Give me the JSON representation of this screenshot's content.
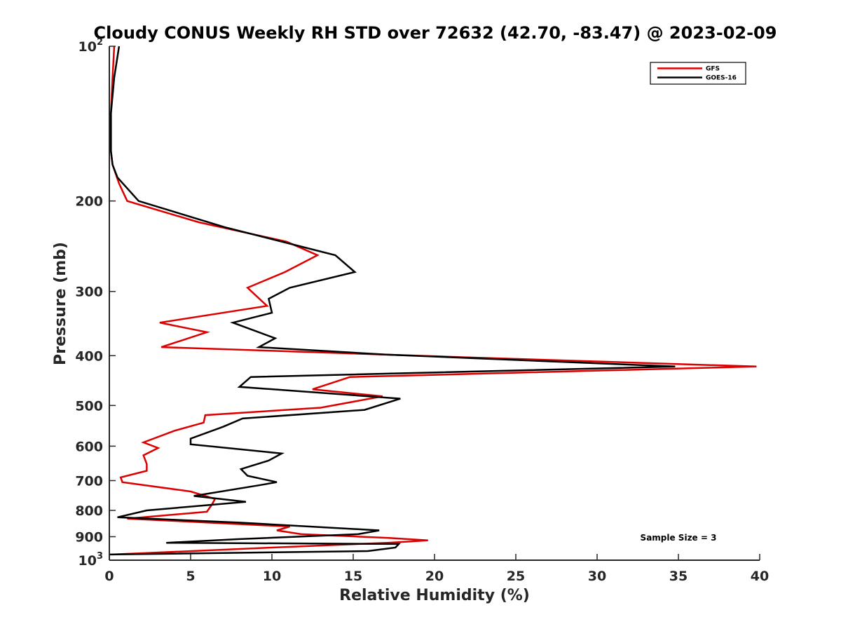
{
  "chart_data": {
    "type": "line",
    "title": "Cloudy CONUS Weekly RH STD over 72632 (42.70, -83.47) @ 2023-02-09",
    "xlabel": "Relative Humidity (%)",
    "ylabel": "Pressure (mb)",
    "xlim": [
      0,
      40
    ],
    "ylim": [
      100,
      1000
    ],
    "y_scale": "log",
    "y_reversed": true,
    "grid": false,
    "legend_position": "top-right",
    "x_ticks": [
      0,
      5,
      10,
      15,
      20,
      25,
      30,
      35,
      40
    ],
    "x_tick_labels": [
      "0",
      "5",
      "10",
      "15",
      "20",
      "25",
      "30",
      "35",
      "40"
    ],
    "y_ticks": [
      100,
      200,
      300,
      400,
      500,
      600,
      700,
      800,
      900,
      1000
    ],
    "y_tick_labels": [
      {
        "base": "10",
        "exp": "2"
      },
      {
        "base": "200",
        "exp": ""
      },
      {
        "base": "300",
        "exp": ""
      },
      {
        "base": "400",
        "exp": ""
      },
      {
        "base": "500",
        "exp": ""
      },
      {
        "base": "600",
        "exp": ""
      },
      {
        "base": "700",
        "exp": ""
      },
      {
        "base": "800",
        "exp": ""
      },
      {
        "base": "900",
        "exp": ""
      },
      {
        "base": "10",
        "exp": "3"
      }
    ],
    "annotation": "Sample Size = 3",
    "series": [
      {
        "name": "GFS",
        "color": "#dd0000",
        "points": [
          [
            0.3,
            100
          ],
          [
            0.2,
            115
          ],
          [
            0.1,
            135
          ],
          [
            0.1,
            160
          ],
          [
            0.2,
            170
          ],
          [
            0.6,
            185
          ],
          [
            1.1,
            200
          ],
          [
            5.5,
            220
          ],
          [
            10.9,
            240
          ],
          [
            12.8,
            255
          ],
          [
            10.8,
            275
          ],
          [
            8.5,
            295
          ],
          [
            9.7,
            320
          ],
          [
            3.1,
            345
          ],
          [
            6.0,
            360
          ],
          [
            3.2,
            385
          ],
          [
            22.0,
            403
          ],
          [
            39.8,
            420
          ],
          [
            14.8,
            440
          ],
          [
            12.5,
            465
          ],
          [
            16.8,
            480
          ],
          [
            13.0,
            505
          ],
          [
            5.9,
            522
          ],
          [
            5.8,
            540
          ],
          [
            4.0,
            560
          ],
          [
            2.1,
            590
          ],
          [
            3.0,
            605
          ],
          [
            2.1,
            625
          ],
          [
            2.3,
            650
          ],
          [
            2.3,
            670
          ],
          [
            0.7,
            690
          ],
          [
            0.8,
            705
          ],
          [
            5.0,
            735
          ],
          [
            6.5,
            760
          ],
          [
            6.3,
            780
          ],
          [
            6.0,
            805
          ],
          [
            1.1,
            830
          ],
          [
            11.1,
            860
          ],
          [
            10.3,
            875
          ],
          [
            11.8,
            890
          ],
          [
            17.2,
            905
          ],
          [
            19.6,
            915
          ],
          [
            17.1,
            925
          ],
          [
            10.0,
            945
          ],
          [
            0.2,
            975
          ]
        ]
      },
      {
        "name": "GOES-16",
        "color": "#000000",
        "points": [
          [
            0.6,
            100
          ],
          [
            0.3,
            115
          ],
          [
            0.1,
            135
          ],
          [
            0.1,
            160
          ],
          [
            0.2,
            170
          ],
          [
            0.5,
            180
          ],
          [
            1.8,
            200
          ],
          [
            7.1,
            225
          ],
          [
            13.9,
            255
          ],
          [
            15.1,
            275
          ],
          [
            11.1,
            295
          ],
          [
            9.8,
            310
          ],
          [
            10.0,
            330
          ],
          [
            7.6,
            345
          ],
          [
            10.2,
            370
          ],
          [
            9.2,
            385
          ],
          [
            17.0,
            398
          ],
          [
            34.8,
            420
          ],
          [
            8.7,
            440
          ],
          [
            8.0,
            460
          ],
          [
            17.9,
            485
          ],
          [
            15.7,
            510
          ],
          [
            8.2,
            530
          ],
          [
            7.0,
            550
          ],
          [
            5.0,
            580
          ],
          [
            5.0,
            595
          ],
          [
            10.6,
            620
          ],
          [
            9.8,
            640
          ],
          [
            8.1,
            665
          ],
          [
            8.5,
            685
          ],
          [
            10.3,
            705
          ],
          [
            9.2,
            715
          ],
          [
            5.2,
            750
          ],
          [
            8.4,
            770
          ],
          [
            2.3,
            800
          ],
          [
            0.5,
            825
          ],
          [
            8.0,
            845
          ],
          [
            16.6,
            875
          ],
          [
            15.3,
            890
          ],
          [
            7.9,
            910
          ],
          [
            3.5,
            925
          ],
          [
            17.8,
            930
          ],
          [
            17.6,
            945
          ],
          [
            15.9,
            960
          ],
          [
            0.0,
            975
          ]
        ]
      }
    ]
  }
}
